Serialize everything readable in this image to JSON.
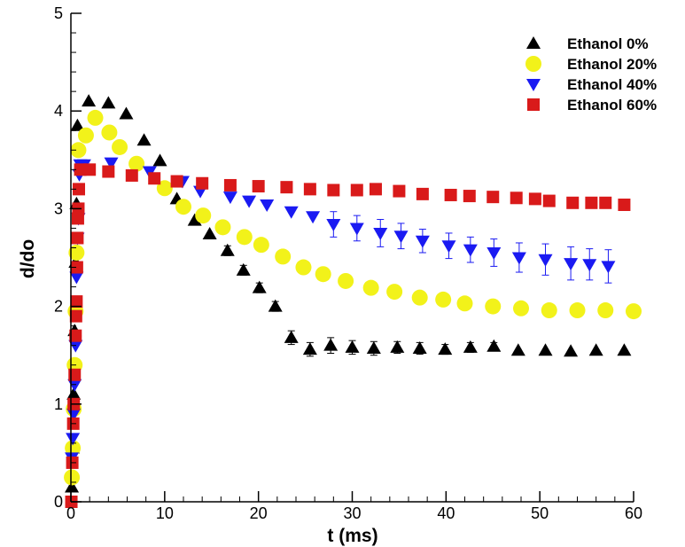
{
  "chart_data": {
    "type": "scatter",
    "xlabel": "t (ms)",
    "ylabel": "d/do",
    "xlim": [
      0,
      60
    ],
    "ylim": [
      0,
      5
    ],
    "xticks": [
      0,
      10,
      20,
      30,
      40,
      50,
      60
    ],
    "yticks": [
      0,
      1,
      2,
      3,
      4,
      5
    ],
    "grid": false,
    "legend_position": "top-right",
    "series": [
      {
        "name": "Ethanol 0%",
        "marker": "triangle-up",
        "color": "#000000",
        "x": [
          0.1,
          0.2,
          0.3,
          0.4,
          0.5,
          0.6,
          0.7,
          1.9,
          4.0,
          5.9,
          7.8,
          9.5,
          11.3,
          13.2,
          14.8,
          16.7,
          18.4,
          20.1,
          21.8,
          23.5,
          25.5,
          27.7,
          30.0,
          32.3,
          34.8,
          37.2,
          39.9,
          42.6,
          45.1,
          47.7,
          50.6,
          53.3,
          56.0,
          59.0
        ],
        "y": [
          0.15,
          0.55,
          1.1,
          1.75,
          2.45,
          3.05,
          3.85,
          4.1,
          4.08,
          3.97,
          3.7,
          3.49,
          3.1,
          2.88,
          2.74,
          2.57,
          2.37,
          2.19,
          2.0,
          1.68,
          1.56,
          1.6,
          1.58,
          1.57,
          1.58,
          1.57,
          1.56,
          1.58,
          1.59,
          1.55,
          1.55,
          1.54,
          1.55,
          1.55
        ],
        "error": [
          0,
          0,
          0,
          0,
          0,
          0,
          0,
          0,
          0,
          0,
          0,
          0,
          0,
          0,
          0,
          0.05,
          0.05,
          0.05,
          0.05,
          0.07,
          0.07,
          0.08,
          0.07,
          0.07,
          0.06,
          0.06,
          0.05,
          0.05,
          0.04,
          0,
          0,
          0,
          0,
          0
        ]
      },
      {
        "name": "Ethanol 20%",
        "marker": "circle",
        "color": "#f2f21a",
        "x": [
          0.1,
          0.2,
          0.3,
          0.4,
          0.5,
          0.6,
          0.8,
          1.6,
          2.6,
          4.1,
          5.2,
          7.0,
          10.0,
          12.0,
          14.1,
          16.2,
          18.5,
          20.3,
          22.6,
          24.8,
          26.9,
          29.3,
          32.0,
          34.5,
          37.2,
          39.7,
          42.0,
          45.0,
          48.0,
          51.0,
          54.0,
          57.0,
          60.0
        ],
        "y": [
          0.25,
          0.55,
          0.95,
          1.4,
          1.95,
          2.55,
          3.6,
          3.75,
          3.93,
          3.78,
          3.63,
          3.46,
          3.21,
          3.02,
          2.93,
          2.81,
          2.71,
          2.63,
          2.51,
          2.4,
          2.33,
          2.26,
          2.19,
          2.15,
          2.09,
          2.07,
          2.03,
          2.0,
          1.98,
          1.96,
          1.96,
          1.96,
          1.95
        ],
        "error": [
          0,
          0,
          0,
          0,
          0,
          0,
          0,
          0,
          0,
          0,
          0,
          0,
          0,
          0,
          0,
          0,
          0,
          0,
          0,
          0.06,
          0,
          0,
          0,
          0,
          0,
          0,
          0,
          0,
          0,
          0,
          0,
          0,
          0
        ]
      },
      {
        "name": "Ethanol 40%",
        "marker": "triangle-down",
        "color": "#1a1af2",
        "x": [
          0.1,
          0.2,
          0.3,
          0.4,
          0.5,
          0.6,
          0.7,
          0.8,
          0.9,
          1.0,
          1.4,
          4.3,
          8.4,
          11.9,
          13.8,
          17.0,
          19.0,
          20.9,
          23.5,
          25.8,
          28.0,
          30.5,
          33.0,
          35.2,
          37.5,
          40.3,
          42.6,
          45.1,
          47.8,
          50.6,
          53.3,
          55.3,
          57.3
        ],
        "y": [
          0.45,
          0.65,
          0.9,
          1.2,
          1.6,
          2.3,
          2.7,
          2.9,
          3.35,
          3.45,
          3.45,
          3.47,
          3.38,
          3.28,
          3.18,
          3.12,
          3.08,
          3.04,
          2.97,
          2.92,
          2.84,
          2.8,
          2.75,
          2.72,
          2.67,
          2.62,
          2.58,
          2.55,
          2.5,
          2.48,
          2.44,
          2.43,
          2.41
        ],
        "error": [
          0,
          0,
          0,
          0,
          0,
          0,
          0,
          0,
          0,
          0,
          0,
          0,
          0,
          0,
          0,
          0,
          0,
          0,
          0,
          0,
          0.13,
          0.13,
          0.14,
          0.13,
          0.12,
          0.13,
          0.13,
          0.14,
          0.15,
          0.16,
          0.17,
          0.16,
          0.17
        ]
      },
      {
        "name": "Ethanol 60%",
        "marker": "square",
        "color": "#d91a1a",
        "x": [
          0.05,
          0.15,
          0.25,
          0.3,
          0.4,
          0.5,
          0.55,
          0.6,
          0.65,
          0.7,
          0.75,
          0.8,
          0.85,
          1.0,
          2.0,
          4.0,
          6.5,
          8.9,
          11.3,
          14.0,
          17.0,
          20.0,
          23.0,
          25.5,
          28.0,
          30.5,
          32.5,
          35.0,
          37.5,
          40.5,
          42.5,
          45.0,
          47.5,
          49.5,
          51.0,
          53.5,
          55.5,
          57.0,
          59.0
        ],
        "y": [
          0.0,
          0.4,
          0.8,
          1.0,
          1.3,
          1.7,
          1.9,
          2.05,
          2.4,
          2.7,
          2.9,
          3.0,
          3.2,
          3.4,
          3.4,
          3.38,
          3.34,
          3.31,
          3.28,
          3.26,
          3.24,
          3.23,
          3.22,
          3.2,
          3.19,
          3.19,
          3.2,
          3.18,
          3.15,
          3.14,
          3.13,
          3.12,
          3.11,
          3.1,
          3.08,
          3.06,
          3.06,
          3.06,
          3.04
        ],
        "error": []
      }
    ]
  }
}
